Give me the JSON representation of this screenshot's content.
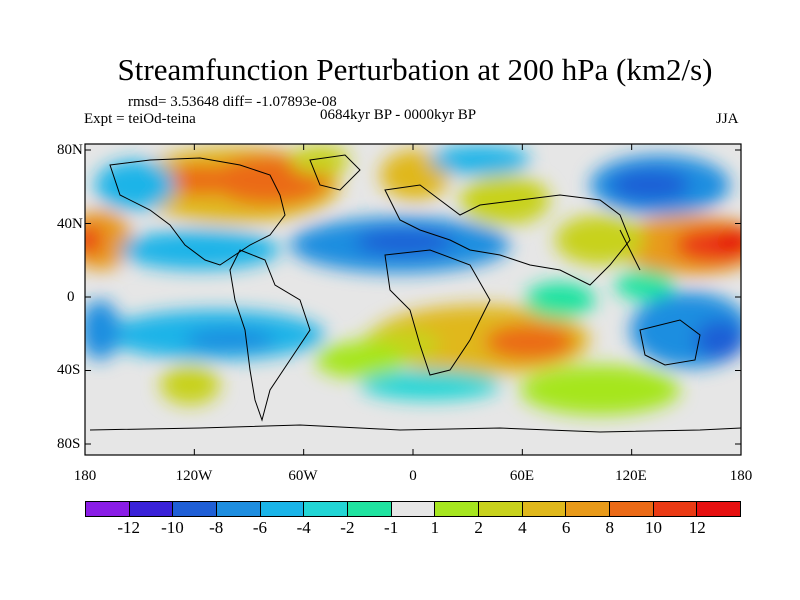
{
  "title": "Streamfunction Perturbation at 200 hPa (km2/s)",
  "stats": "rmsd= 3.53648 diff= -1.07893e-08",
  "experiment": "Expt = teiOd-teina",
  "period": "0684kyr BP - 0000kyr BP",
  "season": "JJA",
  "lat_labels": [
    "80N",
    "40N",
    "0",
    "40S",
    "80S"
  ],
  "lon_labels": [
    "180",
    "120W",
    "60W",
    "0",
    "60E",
    "120E",
    "180"
  ],
  "colorbar": {
    "labels": [
      "-12",
      "-10",
      "-8",
      "-6",
      "-4",
      "-2",
      "-1",
      "1",
      "2",
      "4",
      "6",
      "8",
      "10",
      "12"
    ],
    "colors": [
      "#8a1de6",
      "#3a22d8",
      "#1f5fd6",
      "#1e8ee0",
      "#1ab4e8",
      "#22d5d5",
      "#1fe3a0",
      "#e6e6e6",
      "#a6e61f",
      "#c8d21d",
      "#e0b81c",
      "#e89a1a",
      "#eb6a16",
      "#ea3a14",
      "#e61010"
    ]
  }
}
